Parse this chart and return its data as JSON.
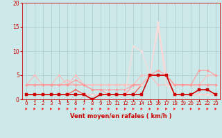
{
  "xlabel": "Vent moyen/en rafales ( km/h )",
  "xlim": [
    -0.5,
    23.5
  ],
  "ylim": [
    0,
    20
  ],
  "yticks": [
    0,
    5,
    10,
    15,
    20
  ],
  "xticks": [
    0,
    1,
    2,
    3,
    4,
    5,
    6,
    7,
    8,
    9,
    10,
    11,
    12,
    13,
    14,
    15,
    16,
    17,
    18,
    19,
    20,
    21,
    22,
    23
  ],
  "bg_color": "#cce8e8",
  "grid_color": "#aacccc",
  "series": [
    {
      "x": [
        0,
        1,
        2,
        3,
        4,
        5,
        6,
        7,
        8,
        9,
        10,
        11,
        12,
        13,
        14,
        15,
        16,
        17,
        18,
        19,
        20,
        21,
        22,
        23
      ],
      "y": [
        3,
        5,
        3,
        3,
        5,
        3,
        5,
        3,
        3,
        3,
        3,
        3,
        3,
        3,
        5,
        5,
        15,
        5,
        3,
        3,
        3,
        3,
        5,
        5
      ],
      "color": "#ffbbbb",
      "lw": 0.8,
      "marker": "D",
      "ms": 1.8
    },
    {
      "x": [
        0,
        1,
        2,
        3,
        4,
        5,
        6,
        7,
        8,
        9,
        10,
        11,
        12,
        13,
        14,
        15,
        16,
        17,
        18,
        19,
        20,
        21,
        22,
        23
      ],
      "y": [
        3,
        3,
        3,
        3,
        3,
        4,
        3,
        3,
        3,
        3,
        3,
        3,
        3,
        3,
        3,
        5,
        3,
        3,
        3,
        3,
        3,
        3,
        3,
        3
      ],
      "color": "#ffbbbb",
      "lw": 0.8,
      "marker": "D",
      "ms": 1.8
    },
    {
      "x": [
        0,
        1,
        2,
        3,
        4,
        5,
        6,
        7,
        8,
        9,
        10,
        11,
        12,
        13,
        14,
        15,
        16,
        17,
        18,
        19,
        20,
        21,
        22,
        23
      ],
      "y": [
        3,
        3,
        3,
        3,
        3,
        3,
        4,
        3,
        2,
        2,
        2,
        2,
        2,
        3,
        3,
        5,
        6,
        5,
        3,
        3,
        3,
        3,
        3,
        3
      ],
      "color": "#ff9999",
      "lw": 0.8,
      "marker": "D",
      "ms": 1.8
    },
    {
      "x": [
        0,
        1,
        2,
        3,
        4,
        5,
        6,
        7,
        8,
        9,
        10,
        11,
        12,
        13,
        14,
        15,
        16,
        17,
        18,
        19,
        20,
        21,
        22,
        23
      ],
      "y": [
        3,
        3,
        3,
        3,
        3,
        3,
        3,
        3,
        2,
        2,
        1,
        1,
        1,
        3,
        3,
        5,
        5,
        5,
        3,
        3,
        3,
        6,
        6,
        5
      ],
      "color": "#ff9999",
      "lw": 0.8,
      "marker": "D",
      "ms": 1.8
    },
    {
      "x": [
        0,
        1,
        2,
        3,
        4,
        5,
        6,
        7,
        8,
        9,
        10,
        11,
        12,
        13,
        14,
        15,
        16,
        17,
        18,
        19,
        20,
        21,
        22,
        23
      ],
      "y": [
        1,
        1,
        1,
        1,
        1,
        1,
        2,
        1,
        1,
        1,
        1,
        1,
        1,
        1,
        3,
        5,
        5,
        5,
        1,
        1,
        1,
        1,
        1,
        1
      ],
      "color": "#ff5555",
      "lw": 0.9,
      "marker": "s",
      "ms": 2.0
    },
    {
      "x": [
        0,
        1,
        2,
        3,
        4,
        5,
        6,
        7,
        8,
        9,
        10,
        11,
        12,
        13,
        14,
        15,
        16,
        17,
        18,
        19,
        20,
        21,
        22,
        23
      ],
      "y": [
        1,
        1,
        1,
        1,
        1,
        1,
        1,
        1,
        1,
        1,
        1,
        1,
        1,
        2,
        3,
        5,
        16,
        5,
        1,
        1,
        1,
        1,
        1,
        1
      ],
      "color": "#ffdddd",
      "lw": 0.8,
      "marker": "D",
      "ms": 1.8
    },
    {
      "x": [
        0,
        1,
        2,
        3,
        4,
        5,
        6,
        7,
        8,
        9,
        10,
        11,
        12,
        13,
        14,
        15,
        16,
        17,
        18,
        19,
        20,
        21,
        22,
        23
      ],
      "y": [
        1,
        1,
        1,
        1,
        1,
        1,
        1,
        1,
        1,
        1,
        1,
        1,
        1,
        11,
        10,
        5,
        15,
        3,
        1,
        1,
        1,
        1,
        1,
        1
      ],
      "color": "#ffdddd",
      "lw": 0.8,
      "marker": "D",
      "ms": 1.8
    },
    {
      "x": [
        0,
        1,
        2,
        3,
        4,
        5,
        6,
        7,
        8,
        9,
        10,
        11,
        12,
        13,
        14,
        15,
        16,
        17,
        18,
        19,
        20,
        21,
        22,
        23
      ],
      "y": [
        1,
        1,
        1,
        1,
        1,
        1,
        1,
        1,
        0,
        1,
        1,
        1,
        1,
        1,
        1,
        5,
        5,
        5,
        1,
        1,
        1,
        2,
        2,
        1
      ],
      "color": "#cc0000",
      "lw": 1.2,
      "marker": "s",
      "ms": 2.5
    }
  ],
  "arrow_color": "#ff2222",
  "tick_color": "#cc0000",
  "label_color": "#cc0000"
}
